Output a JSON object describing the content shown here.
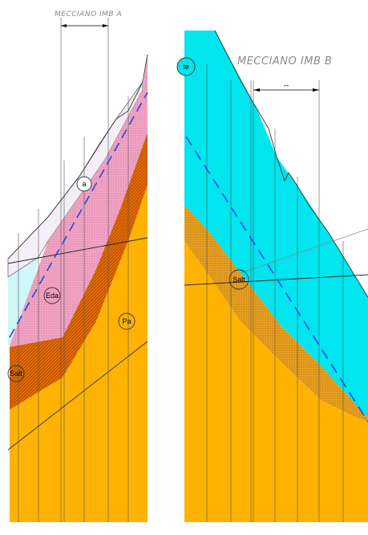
{
  "sections": [
    {
      "title": "MECCIANO IMB A",
      "dimension_label": "",
      "labels": [
        {
          "id": "a",
          "text": "a"
        },
        {
          "id": "eda",
          "text": "Eda"
        },
        {
          "id": "pa",
          "text": "Pa"
        },
        {
          "id": "salt",
          "text": "Salt"
        }
      ]
    },
    {
      "title": "MECCIANO IMB B",
      "dimension_label": "--",
      "labels": [
        {
          "id": "te",
          "text": "te"
        },
        {
          "id": "salt",
          "text": "Salt"
        }
      ]
    }
  ],
  "colors": {
    "orange": "#FFB300",
    "dark_orange": "#E46A00",
    "pink": "#F3A5C5",
    "cyan": "#00E5EE",
    "light_cyan": "#CFF6F8",
    "dashed_line": "#1D4FD8"
  }
}
